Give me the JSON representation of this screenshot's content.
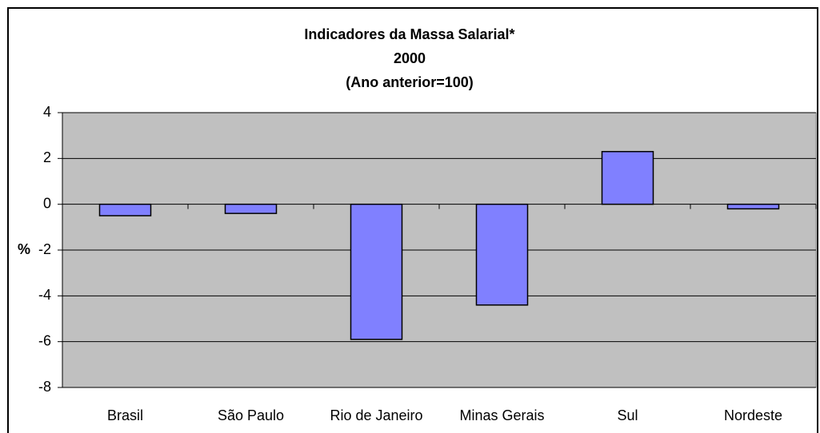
{
  "chart_data": {
    "type": "bar",
    "title": [
      "Indicadores da Massa Salarial*",
      "2000",
      "(Ano anterior=100)"
    ],
    "y_label": "%",
    "categories": [
      "Brasil",
      "São Paulo",
      "Rio de Janeiro",
      "Minas Gerais",
      "Sul",
      "Nordeste"
    ],
    "values": [
      -0.5,
      -0.4,
      -5.9,
      -4.4,
      2.3,
      -0.2
    ],
    "color": "#8080ff",
    "ylim": [
      -8,
      4
    ],
    "yticks": [
      -8,
      -6,
      -4,
      -2,
      0,
      2,
      4
    ],
    "grid": true
  }
}
